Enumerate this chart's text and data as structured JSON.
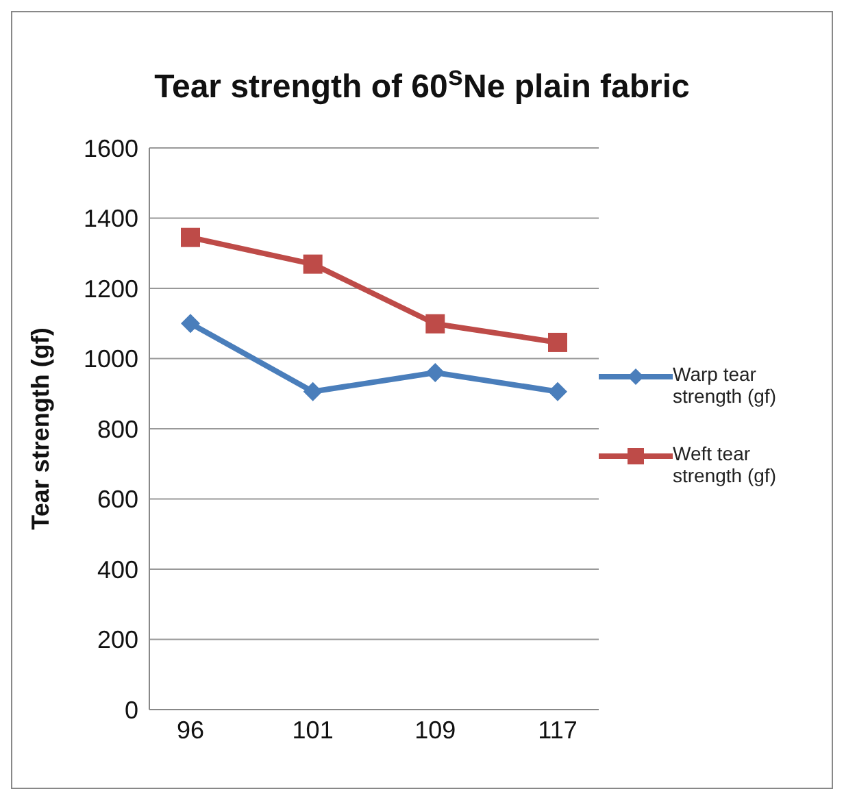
{
  "chart_data": {
    "type": "line",
    "title": "Tear strength of 60$^{s}$Ne plain fabric",
    "ylabel": "Tear strength (gf)",
    "categories": [
      "96",
      "101",
      "109",
      "117"
    ],
    "series": [
      {
        "name": "Warp tear strength (gf)",
        "color": "#4a7ebb",
        "marker": "diamond",
        "values": [
          1100,
          906,
          960,
          906
        ]
      },
      {
        "name": "Weft tear strength (gf)",
        "color": "#be4b48",
        "marker": "square",
        "values": [
          1345,
          1269,
          1099,
          1046
        ]
      }
    ],
    "ylim": [
      0,
      1600
    ],
    "yticks": [
      0,
      200,
      400,
      600,
      800,
      1000,
      1200,
      1400,
      1600
    ],
    "grid": "y",
    "legend": "right",
    "line_style": "solid"
  }
}
